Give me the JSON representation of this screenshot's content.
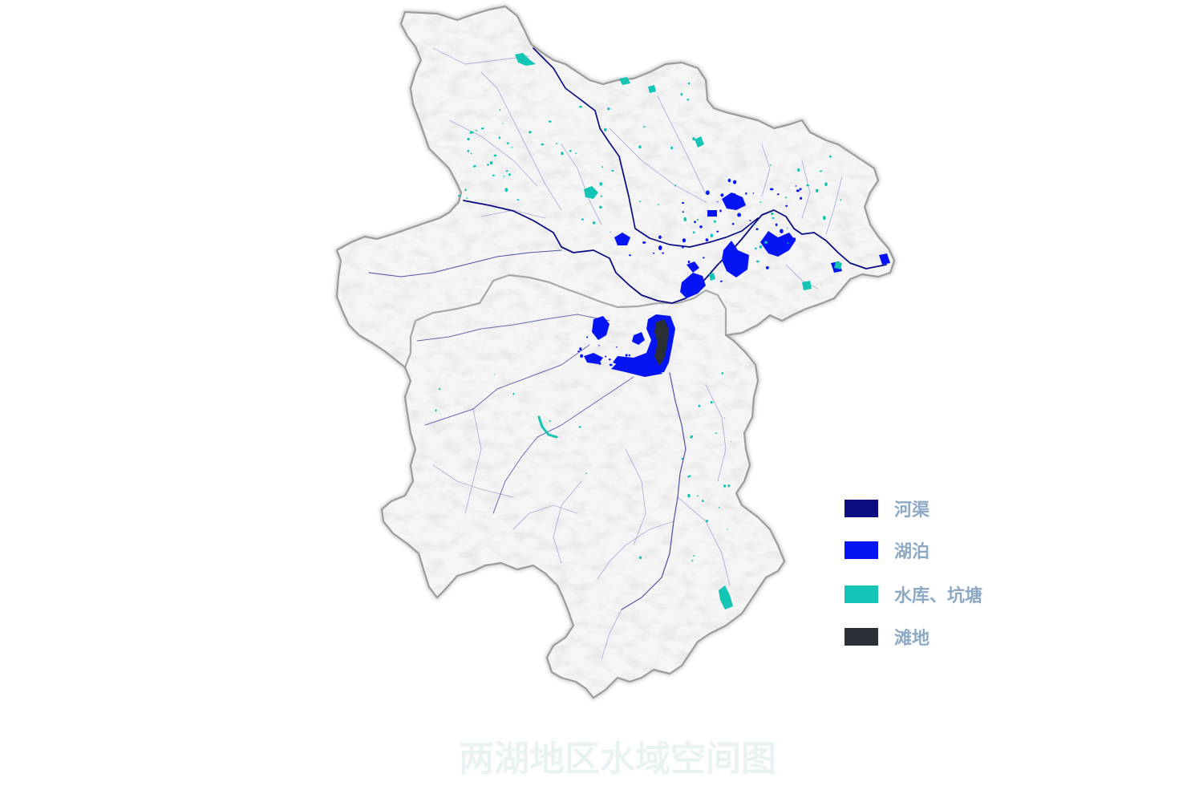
{
  "title": "两湖地区水域空间图",
  "legend": {
    "items": [
      {
        "label": "河渠",
        "color": "#0b0b82"
      },
      {
        "label": "湖泊",
        "color": "#0514f2"
      },
      {
        "label": "水库、坑塘",
        "color": "#14c4b4"
      },
      {
        "label": "滩地",
        "color": "#2b3036"
      }
    ]
  },
  "colors": {
    "land": "#f5f5f5",
    "boundary": "#9c9c9c",
    "minor_river": "#7a78c0",
    "legend_text": "#8ea9c4",
    "title": "#e9f3f4"
  }
}
